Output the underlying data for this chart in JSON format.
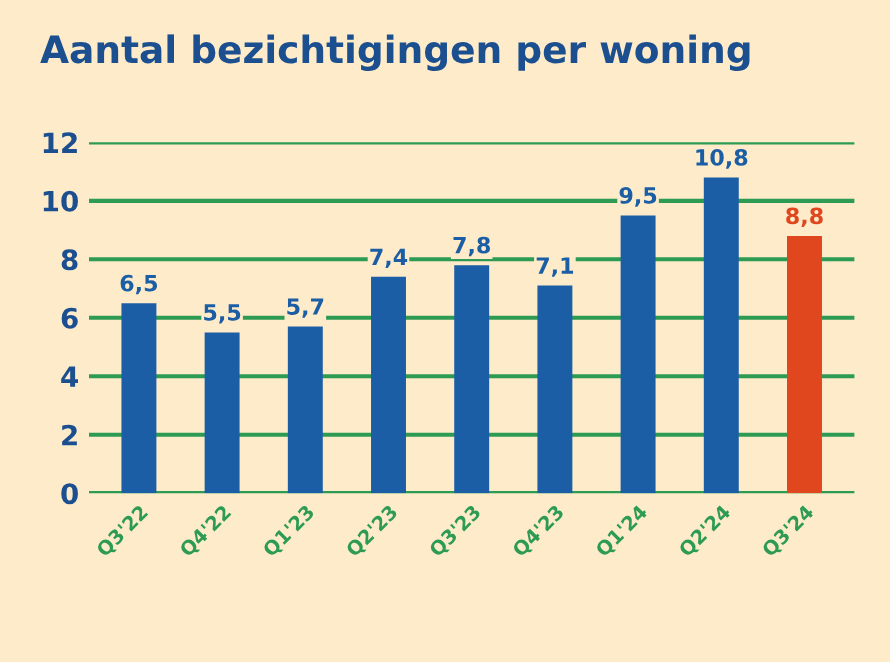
{
  "chart_data": {
    "type": "bar",
    "title": "Aantal bezichtigingen per woning",
    "categories": [
      "Q3'22",
      "Q4'22",
      "Q1'23",
      "Q2'23",
      "Q3'23",
      "Q4'23",
      "Q1'24",
      "Q2'24",
      "Q3'24"
    ],
    "values": [
      6.5,
      5.5,
      5.7,
      7.4,
      7.8,
      7.1,
      9.5,
      10.8,
      8.8
    ],
    "value_labels": [
      "6,5",
      "5,5",
      "5,7",
      "7,4",
      "7,8",
      "7,1",
      "9,5",
      "10,8",
      "8,8"
    ],
    "colors": [
      "#1b5ea6",
      "#1b5ea6",
      "#1b5ea6",
      "#1b5ea6",
      "#1b5ea6",
      "#1b5ea6",
      "#1b5ea6",
      "#1b5ea6",
      "#e0471e"
    ],
    "ylim": [
      0,
      12
    ],
    "yticks": [
      0,
      2,
      4,
      6,
      8,
      10,
      12
    ],
    "grid": "y",
    "legend": false
  }
}
